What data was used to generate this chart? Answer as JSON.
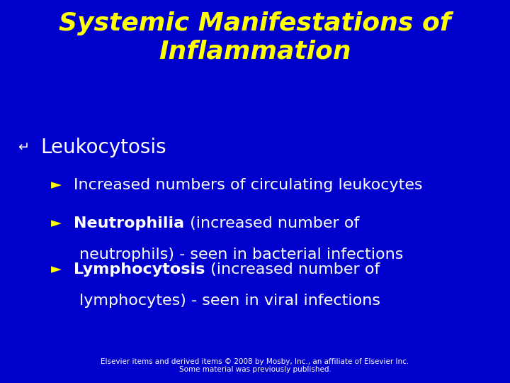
{
  "background_color": "#0000cc",
  "title_line1": "Systemic Manifestations of",
  "title_line2": "Inflammation",
  "title_color": "#ffff00",
  "title_fontsize": 26,
  "bullet1_symbol": "↵",
  "bullet1_text": "Leukocytosis",
  "bullet1_color": "#ffffff",
  "bullet1_fontsize": 20,
  "sub_bullet_symbol": "►",
  "sub_bullet_color": "#ffff00",
  "sub_bullet_fontsize": 16,
  "sub_text_color": "#ffffff",
  "sub_bullets": [
    {
      "bold_part": "",
      "normal_part": "Increased numbers of circulating leukocytes",
      "line2": ""
    },
    {
      "bold_part": "Neutrophilia",
      "normal_part": " (increased number of",
      "line2": "neutrophils) - seen in bacterial infections"
    },
    {
      "bold_part": "Lymphocytosis",
      "normal_part": " (increased number of",
      "line2": "lymphocytes) - seen in viral infections"
    }
  ],
  "footer_text": "Elsevier items and derived items © 2008 by Mosby, Inc., an affiliate of Elsevier Inc.\nSome material was previously published.",
  "footer_color": "#ffffff",
  "footer_fontsize": 7.5
}
